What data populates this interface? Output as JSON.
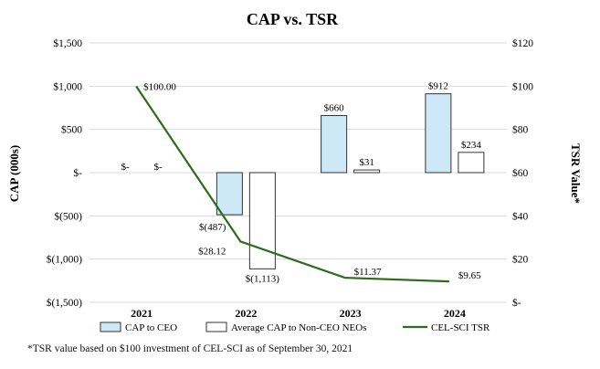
{
  "chart_data": {
    "type": "bar+line",
    "title": "CAP vs. TSR",
    "ylabel_left": "CAP (000s)",
    "ylabel_right": "TSR Value*",
    "categories": [
      "2021",
      "2022",
      "2023",
      "2024"
    ],
    "y_left": {
      "min": -1500,
      "max": 1500,
      "ticks": [
        1500,
        1000,
        500,
        0,
        -500,
        -1000,
        -1500
      ],
      "tick_labels": [
        "$1,500",
        "$1,000",
        "$500",
        "$-",
        "$(500)",
        "$(1,000)",
        "$(1,500)"
      ]
    },
    "y_right": {
      "min": 0,
      "max": 120,
      "ticks": [
        120,
        100,
        80,
        60,
        40,
        20,
        0
      ],
      "tick_labels": [
        "$120",
        "$100",
        "$80",
        "$60",
        "$40",
        "$20",
        "$-"
      ]
    },
    "grid": true,
    "series": [
      {
        "name": "CAP to CEO",
        "kind": "bar",
        "axis": "left",
        "color": "#cde8f6",
        "values": [
          0,
          -487,
          660,
          912
        ],
        "labels": [
          "$-",
          "$(487)",
          "$660",
          "$912"
        ]
      },
      {
        "name": "Average CAP to Non-CEO NEOs",
        "kind": "bar",
        "axis": "left",
        "color": "#ffffff",
        "values": [
          0,
          -1113,
          31,
          234
        ],
        "labels": [
          "$-",
          "$(1,113)",
          "$31",
          "$234"
        ]
      },
      {
        "name": "CEL-SCI TSR",
        "kind": "line",
        "axis": "right",
        "color": "#2e6b1f",
        "values": [
          100.0,
          28.12,
          11.37,
          9.65
        ],
        "labels": [
          "$100.00",
          "$28.12",
          "$11.37",
          "$9.65"
        ]
      }
    ],
    "legend_position": "bottom"
  },
  "footnote": "*TSR value based on $100 investment of CEL-SCI as of September 30, 2021"
}
